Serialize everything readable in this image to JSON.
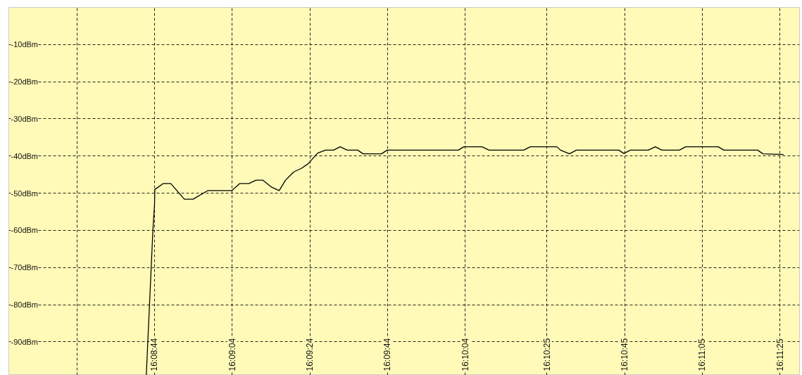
{
  "chart_data": {
    "type": "line",
    "x": [
      16.14497,
      16.14544,
      16.14556,
      16.14558,
      16.14617,
      16.14672,
      16.14769,
      16.14831,
      16.14936,
      16.15108,
      16.15164,
      16.15231,
      16.15281,
      16.15331,
      16.15394,
      16.15447,
      16.15492,
      16.1555,
      16.15606,
      16.15653,
      16.15722,
      16.15778,
      16.15836,
      16.15883,
      16.15933,
      16.16008,
      16.16047,
      16.16178,
      16.16219,
      16.16728,
      16.16767,
      16.16897,
      16.16947,
      16.17195,
      16.17242,
      16.17433,
      16.17458,
      16.17522,
      16.17572,
      16.17875,
      16.17911,
      16.17958,
      16.18086,
      16.18136,
      16.18183,
      16.18308,
      16.18353,
      16.18586,
      16.18625,
      16.18867,
      16.18906,
      16.19053
    ],
    "series": [
      {
        "color": "#000000",
        "values": [
          -99,
          -60,
          -53,
          -49.0,
          -47.4,
          -47.4,
          -51.6,
          -51.6,
          -49.3,
          -49.3,
          -47.4,
          -47.4,
          -46.5,
          -46.5,
          -48.4,
          -49.3,
          -46.5,
          -44.3,
          -43.3,
          -42.1,
          -39.2,
          -38.4,
          -38.4,
          -37.5,
          -38.4,
          -38.4,
          -39.4,
          -39.4,
          -38.4,
          -38.4,
          -37.5,
          -37.5,
          -38.4,
          -38.4,
          -37.5,
          -37.5,
          -38.4,
          -39.4,
          -38.4,
          -38.4,
          -39.3,
          -38.4,
          -38.4,
          -37.5,
          -38.4,
          -38.4,
          -37.5,
          -37.5,
          -38.4,
          -38.4,
          -39.4,
          -39.6
        ]
      }
    ],
    "xlim": [
      16.13514,
      16.19167
    ],
    "ylim": [
      -99,
      0
    ],
    "xticks": [
      {
        "value": 16.14,
        "label": null
      },
      {
        "value": 16.145556,
        "label": "16:08:44"
      },
      {
        "value": 16.151111,
        "label": "16:09:04"
      },
      {
        "value": 16.156667,
        "label": "16:09:24"
      },
      {
        "value": 16.162222,
        "label": "16:09:44"
      },
      {
        "value": 16.167778,
        "label": "16:10:04"
      },
      {
        "value": 16.173611,
        "label": "16:10:25"
      },
      {
        "value": 16.179167,
        "label": "16:10:45"
      },
      {
        "value": 16.184722,
        "label": "16:11:05"
      },
      {
        "value": 16.190278,
        "label": "16:11:25"
      }
    ],
    "yticks": [
      {
        "value": -10,
        "label": "-10dBm"
      },
      {
        "value": -20,
        "label": "-20dBm"
      },
      {
        "value": -30,
        "label": "-30dBm"
      },
      {
        "value": -40,
        "label": "-40dBm"
      },
      {
        "value": -50,
        "label": "-50dBm"
      },
      {
        "value": -60,
        "label": "-60dBm"
      },
      {
        "value": -70,
        "label": "-70dBm"
      },
      {
        "value": -80,
        "label": "-80dBm"
      },
      {
        "value": -90,
        "label": "-90dBm"
      }
    ],
    "grid": true,
    "line_style": "solid"
  }
}
